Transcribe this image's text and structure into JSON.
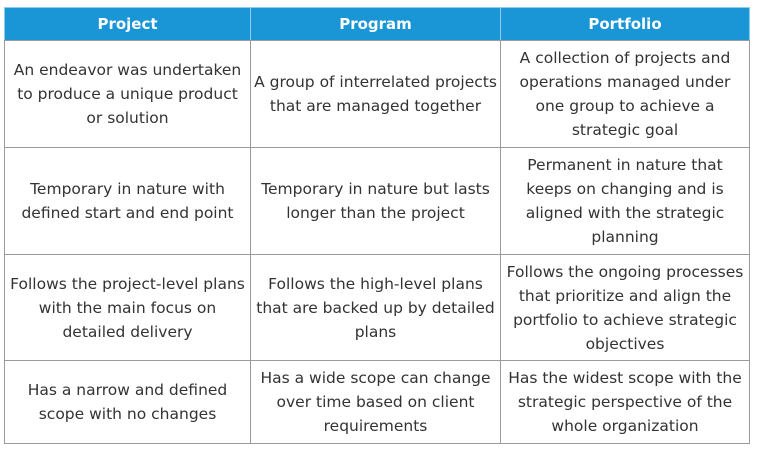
{
  "table": {
    "headers": [
      "Project",
      "Program",
      "Portfolio"
    ],
    "rows": [
      [
        "An endeavor was undertaken to produce a unique product or solution",
        "A group of interrelated projects that are managed together",
        "A collection of projects and operations managed under one group to achieve a strategic goal"
      ],
      [
        "Temporary in nature with defined start and end point",
        "Temporary in nature but lasts longer than the project",
        "Permanent in nature that keeps on changing and is aligned with the strategic planning"
      ],
      [
        "Follows the project-level plans with the main focus on detailed delivery",
        "Follows the high-level plans that are backed up by detailed plans",
        "Follows the ongoing processes that prioritize and align the portfolio to achieve strategic objectives"
      ],
      [
        "Has a narrow and defined scope with no changes",
        "Has a wide scope can change over time based on client requirements",
        "Has the widest scope with the strategic perspective of the whole organization"
      ]
    ]
  },
  "colors": {
    "header_background": "#1a96d6",
    "header_text": "#ffffff",
    "body_text": "#333333",
    "border": "#9a9a9a"
  }
}
